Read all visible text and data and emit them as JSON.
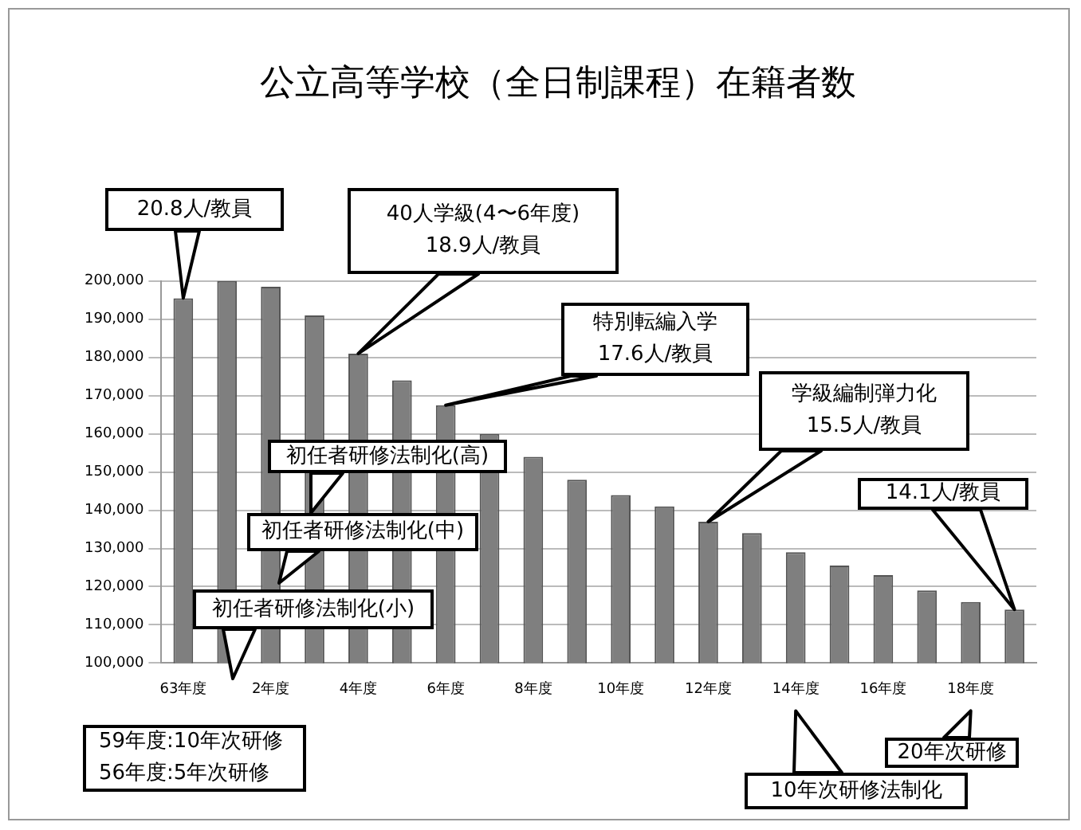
{
  "chart_data": {
    "type": "bar",
    "title": "公立高等学校（全日制課程）在籍者数",
    "categories": [
      "63年度",
      null,
      "2年度",
      null,
      "4年度",
      null,
      "6年度",
      null,
      "8年度",
      null,
      "10年度",
      null,
      "12年度",
      null,
      "14年度",
      null,
      "16年度",
      null,
      "18年度",
      null
    ],
    "values": [
      195500,
      200000,
      198500,
      191000,
      181000,
      174000,
      167500,
      160000,
      154000,
      148000,
      144000,
      141000,
      137000,
      134000,
      129000,
      125500,
      123000,
      119000,
      116000,
      114000
    ],
    "color": "#7f7f7f",
    "ylim": [
      100000,
      200000
    ],
    "yticks": [
      {
        "value": 100000,
        "label": "100,000"
      },
      {
        "value": 110000,
        "label": "110,000"
      },
      {
        "value": 120000,
        "label": "120,000"
      },
      {
        "value": 130000,
        "label": "130,000"
      },
      {
        "value": 140000,
        "label": "140,000"
      },
      {
        "value": 150000,
        "label": "150,000"
      },
      {
        "value": 160000,
        "label": "160,000"
      },
      {
        "value": 170000,
        "label": "170,000"
      },
      {
        "value": 180000,
        "label": "180,000"
      },
      {
        "value": 190000,
        "label": "190,000"
      },
      {
        "value": 200000,
        "label": "200,000"
      }
    ],
    "grid": "y",
    "annotations": [
      {
        "text": "20.8人/教員",
        "x": "63年度",
        "y": 195500
      },
      "40人学級(4〜6年度)\n18.9人/教員",
      {
        "text": "特別転編入学\n17.6人/教員",
        "x": "6年度",
        "y": 167500
      },
      "初任者研修法制化(高)",
      "初任者研修法制化(中)",
      "初任者研修法制化(小)",
      "学級編制弾力化\n15.5人/教員",
      "14.1人/教員",
      "59年度:10年次研修\n56年度:5年次研修",
      "20年次研修",
      "10年次研修法制化"
    ]
  }
}
